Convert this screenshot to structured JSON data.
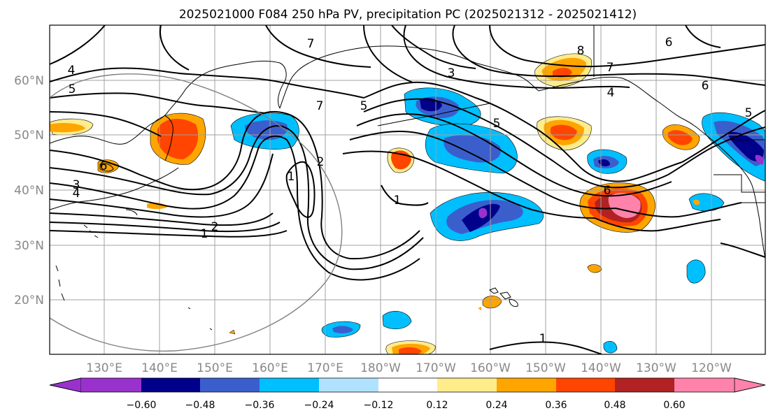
{
  "title": "2025021000 F084 250 hPa PV, precipitation PC (2025021312 - 2025021412)",
  "map": {
    "lon_labels": [
      "130°E",
      "140°E",
      "150°E",
      "160°E",
      "170°E",
      "180°W",
      "170°W",
      "160°W",
      "150°W",
      "140°W",
      "130°W",
      "120°W"
    ],
    "lat_labels": [
      "60°N",
      "50°N",
      "40°N",
      "30°N",
      "20°N"
    ]
  },
  "contour_labels": [
    "4",
    "5",
    "7",
    "5",
    "5",
    "3",
    "8",
    "7",
    "4",
    "6",
    "6",
    "5",
    "6",
    "3",
    "4",
    "1",
    "2",
    "1",
    "7",
    "2",
    "1",
    "6",
    "1"
  ],
  "colorbar": {
    "ticks": [
      "−0.60",
      "−0.48",
      "−0.36",
      "−0.24",
      "−0.12",
      "0.12",
      "0.24",
      "0.36",
      "0.48",
      "0.60"
    ],
    "colors": [
      "#9932cc",
      "#00008b",
      "#3a5fcd",
      "#00bfff",
      "#b0e2ff",
      "#ffffff",
      "#ffec8b",
      "#ffa500",
      "#ff4500",
      "#b22222",
      "#ff82ab"
    ]
  }
}
